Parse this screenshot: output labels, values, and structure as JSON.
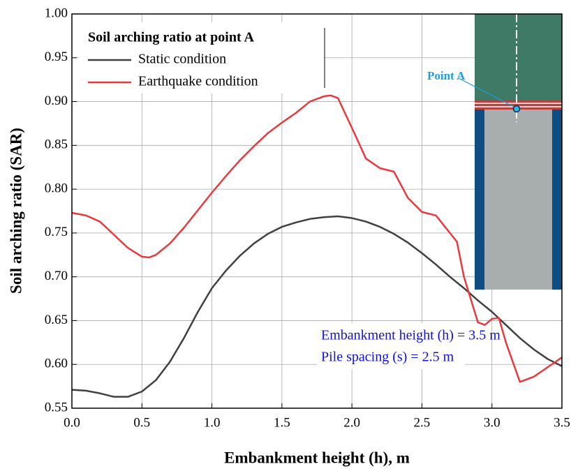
{
  "chart_data": {
    "type": "line",
    "xlabel": "Embankment height (h), m",
    "ylabel": "Soil arching ratio (SAR)",
    "legend_title": "Soil arching ratio at point A",
    "annotations": [
      "Embankment height (h) = 3.5 m",
      "Pile spacing (s) = 2.5 m"
    ],
    "inset_label": "Point A",
    "xlim": [
      0,
      3.5
    ],
    "xticks": [
      {
        "value": 0,
        "label": "0.0"
      },
      0.5,
      {
        "value": 1,
        "label": "1.0"
      },
      1.5,
      {
        "value": 2,
        "label": "2.0"
      },
      2.5,
      {
        "value": 3,
        "label": "3.0"
      },
      3.5
    ],
    "ylim": [
      0.55,
      1
    ],
    "yticks": [
      0.55,
      {
        "value": 0.6,
        "label": "0.60"
      },
      0.65,
      {
        "value": 0.7,
        "label": "0.70"
      },
      0.75,
      {
        "value": 0.8,
        "label": "0.80"
      },
      0.85,
      {
        "value": 0.9,
        "label": "0.90"
      },
      0.95,
      {
        "value": 1,
        "label": "1.00"
      }
    ],
    "grid": true,
    "legend": "upper left",
    "series": [
      {
        "name": "Static condition",
        "color": "#404040",
        "x": [
          0,
          0.1,
          0.2,
          0.3,
          0.4,
          0.5,
          0.6,
          0.7,
          0.8,
          0.9,
          1,
          1.1,
          1.2,
          1.3,
          1.4,
          1.5,
          1.6,
          1.7,
          1.8,
          1.9,
          2,
          2.1,
          2.2,
          2.3,
          2.4,
          2.5,
          2.6,
          2.7,
          2.8,
          2.9,
          3,
          3.1,
          3.2,
          3.3,
          3.4,
          3.5
        ],
        "values": [
          0.571,
          0.57,
          0.567,
          0.563,
          0.563,
          0.569,
          0.582,
          0.603,
          0.63,
          0.66,
          0.687,
          0.707,
          0.724,
          0.738,
          0.749,
          0.757,
          0.762,
          0.766,
          0.768,
          0.769,
          0.767,
          0.763,
          0.757,
          0.749,
          0.739,
          0.727,
          0.714,
          0.7,
          0.687,
          0.673,
          0.66,
          0.645,
          0.63,
          0.617,
          0.606,
          0.598
        ]
      },
      {
        "name": "Earthquake condition",
        "color": "#e8393f",
        "x": [
          0,
          0.1,
          0.2,
          0.3,
          0.4,
          0.5,
          0.55,
          0.6,
          0.7,
          0.8,
          0.9,
          1,
          1.1,
          1.2,
          1.3,
          1.4,
          1.5,
          1.6,
          1.7,
          1.8,
          1.85,
          1.9,
          2,
          2.1,
          2.2,
          2.3,
          2.4,
          2.5,
          2.6,
          2.7,
          2.75,
          2.8,
          2.9,
          2.95,
          3,
          3.05,
          3.1,
          3.2,
          3.3,
          3.4,
          3.5
        ],
        "values": [
          0.773,
          0.77,
          0.763,
          0.748,
          0.733,
          0.723,
          0.722,
          0.725,
          0.738,
          0.756,
          0.776,
          0.796,
          0.815,
          0.833,
          0.849,
          0.864,
          0.876,
          0.887,
          0.9,
          0.906,
          0.907,
          0.904,
          0.87,
          0.835,
          0.824,
          0.82,
          0.79,
          0.774,
          0.77,
          0.75,
          0.74,
          0.7,
          0.648,
          0.645,
          0.652,
          0.653,
          0.625,
          0.58,
          0.586,
          0.597,
          0.608
        ]
      }
    ]
  }
}
